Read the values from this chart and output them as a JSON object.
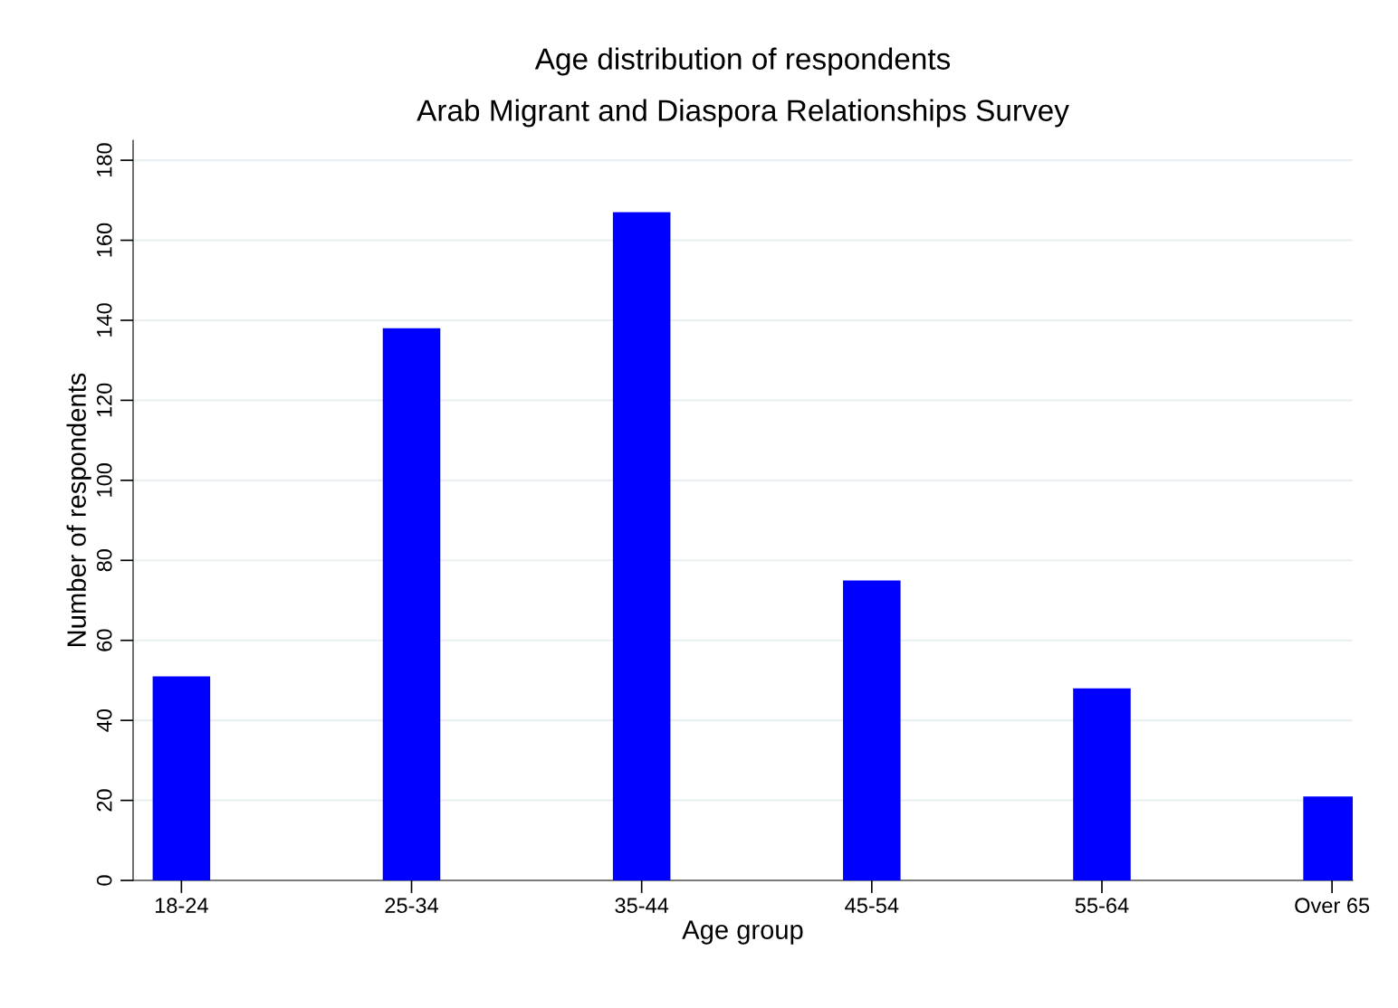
{
  "chart_data": {
    "type": "bar",
    "title": "Age distribution of respondents",
    "subtitle": "Arab Migrant and Diaspora Relationships Survey",
    "xlabel": "Age group",
    "ylabel": "Number of respondents",
    "categories": [
      "18-24",
      "25-34",
      "35-44",
      "45-54",
      "55-64",
      "Over 65"
    ],
    "values": [
      51,
      138,
      167,
      75,
      48,
      21
    ],
    "color": "#0000ff",
    "ylim": [
      0,
      185
    ],
    "yticks": [
      0,
      20,
      40,
      60,
      80,
      100,
      120,
      140,
      160,
      180
    ],
    "grid": "y"
  }
}
